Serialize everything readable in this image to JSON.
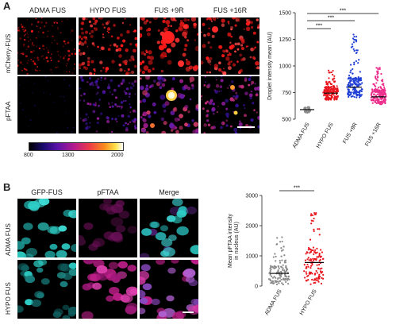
{
  "panel_a": {
    "letter": "A",
    "columns": [
      "ADMA FUS",
      "HYPO FUS",
      "FUS +9R",
      "FUS +16R"
    ],
    "rows": [
      "mCherry-FUS",
      "pFTAA"
    ],
    "colorbar_ticks": [
      "800",
      "1300",
      "2000"
    ],
    "colors": {
      "mcherry": "#ff1a1a",
      "fire_low": "#2a0a8a",
      "fire_mid": "#d21b7a",
      "fire_high": "#ffd200"
    }
  },
  "panel_b": {
    "letter": "B",
    "columns": [
      "GFP-FUS",
      "pFTAA",
      "Merge"
    ],
    "rows": [
      "ADMA FUS",
      "HYPO FUS"
    ],
    "colors": {
      "gfp": "#2fd0c8",
      "pftaa": "#c2208c"
    }
  },
  "chart_data": [
    {
      "type": "scatter",
      "ylabel": "Droplet intensity mean (AU)",
      "categories": [
        "ADMA FUS",
        "HYPO FUS",
        "FUS +9R",
        "FUS +16R"
      ],
      "yticks": [
        "500",
        "750",
        "1000",
        "1250",
        "1500"
      ],
      "ylim": [
        500,
        1500
      ],
      "series": [
        {
          "values_mean": 590,
          "spread": [
            560,
            620
          ],
          "color": "#8c8c8c"
        },
        {
          "values_mean": 745,
          "spread": [
            660,
            960
          ],
          "color": "#e8161e"
        },
        {
          "values_mean": 800,
          "spread": [
            680,
            1320
          ],
          "color": "#1f3fd6"
        },
        {
          "values_mean": 710,
          "spread": [
            620,
            990
          ],
          "color": "#ec2f8c"
        }
      ],
      "significance": [
        "***",
        "***",
        "***"
      ]
    },
    {
      "type": "scatter",
      "ylabel": "Mean pFTAA intensity in nucleus (AU)",
      "categories": [
        "ADMA FUS",
        "HYPO FUS"
      ],
      "yticks": [
        "0",
        "1000",
        "2000",
        "3000"
      ],
      "ylim": [
        0,
        3000
      ],
      "series": [
        {
          "values_mean": 420,
          "spread": [
            40,
            1700
          ],
          "color": "#8c8c8c"
        },
        {
          "values_mean": 780,
          "spread": [
            60,
            2450
          ],
          "color": "#e8161e"
        }
      ],
      "significance": [
        "***"
      ]
    }
  ]
}
